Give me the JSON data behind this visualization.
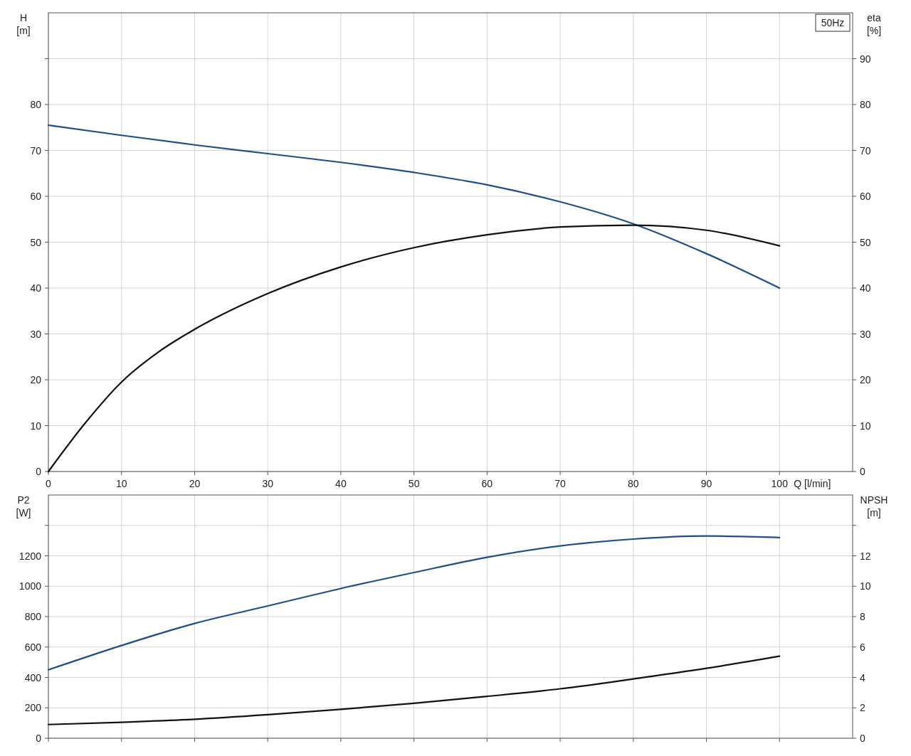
{
  "chart_data": [
    {
      "type": "line",
      "xlabel": "Q [l/min]",
      "ylabel": "H [m]",
      "y2label": "eta [%]",
      "annotations": [
        "50Hz"
      ],
      "xlim": [
        0,
        110
      ],
      "xticks": [
        0,
        10,
        20,
        30,
        40,
        50,
        60,
        70,
        80,
        90,
        100
      ],
      "ylim": [
        0,
        100
      ],
      "yticks": [
        0,
        10,
        20,
        30,
        40,
        50,
        60,
        70,
        80,
        {
          "value": 90,
          "label": null
        }
      ],
      "y2lim": [
        0,
        100
      ],
      "y2ticks": [
        0,
        10,
        20,
        30,
        40,
        50,
        60,
        70,
        80,
        90
      ],
      "grid": true,
      "marker": "none",
      "line_style": "solid",
      "series": [
        {
          "color": "#1f4e8c",
          "x": [
            0,
            10,
            20,
            30,
            40,
            50,
            60,
            70,
            80,
            90,
            100
          ],
          "values": [
            75.5,
            73.3,
            71.2,
            69.3,
            67.4,
            65.2,
            62.5,
            58.8,
            54,
            47.5,
            40
          ]
        },
        {
          "color": "#111111",
          "axis": "y2",
          "x": [
            0,
            5,
            10,
            15,
            20,
            30,
            40,
            50,
            60,
            70,
            80,
            90,
            100
          ],
          "values": [
            0,
            10.5,
            19.5,
            26,
            31,
            38.8,
            44.6,
            48.8,
            51.6,
            53.3,
            53.7,
            52.6,
            49.2
          ]
        }
      ]
    },
    {
      "type": "line",
      "ylabel": "P2 [W]",
      "y2label": "NPSH [m]",
      "tick_labels": "y",
      "xlim": [
        0,
        110
      ],
      "xticks": [
        0,
        10,
        20,
        30,
        40,
        50,
        60,
        70,
        80,
        90,
        100
      ],
      "ylim": [
        0,
        1600
      ],
      "yticks": [
        0,
        200,
        400,
        600,
        800,
        1000,
        1200,
        {
          "value": 1400,
          "label": null
        }
      ],
      "y2lim": [
        0,
        16
      ],
      "y2ticks": [
        0,
        2,
        4,
        6,
        8,
        10,
        12,
        {
          "value": 14,
          "label": null
        }
      ],
      "grid": true,
      "marker": "none",
      "line_style": "solid",
      "series": [
        {
          "color": "#1f4e8c",
          "x": [
            0,
            10,
            20,
            30,
            40,
            50,
            60,
            70,
            80,
            90,
            100
          ],
          "values": [
            450,
            610,
            755,
            870,
            985,
            1090,
            1190,
            1265,
            1310,
            1330,
            1320
          ]
        },
        {
          "color": "#111111",
          "axis": "y2",
          "x": [
            0,
            10,
            20,
            30,
            40,
            50,
            60,
            70,
            80,
            90,
            100
          ],
          "values": [
            0.9,
            1.05,
            1.25,
            1.55,
            1.9,
            2.3,
            2.75,
            3.25,
            3.9,
            4.6,
            5.4
          ]
        }
      ]
    }
  ]
}
